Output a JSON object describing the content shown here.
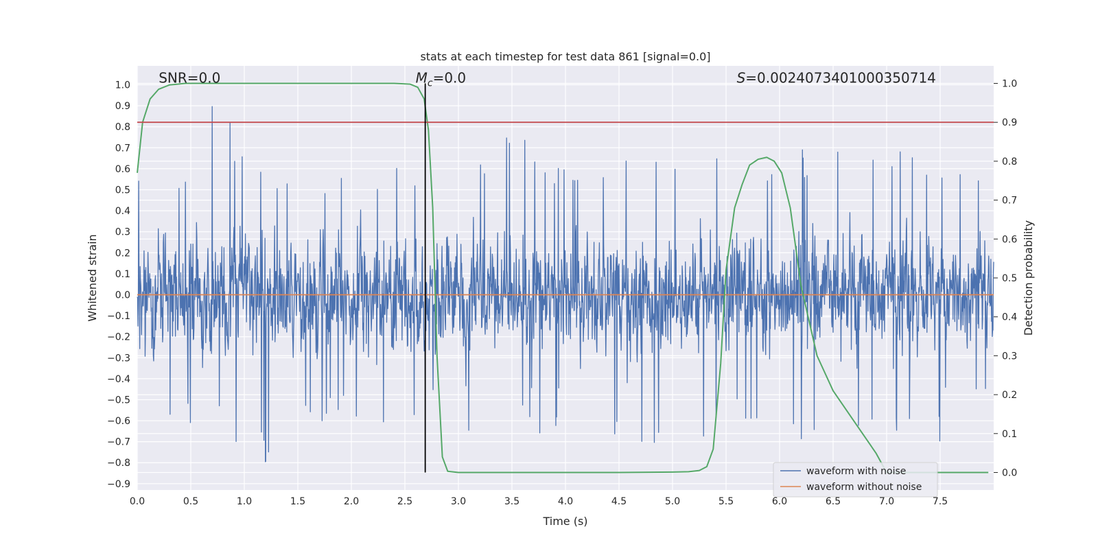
{
  "chart_data": {
    "type": "line",
    "title": "stats at each timestep for test data 861 [signal=0.0]",
    "xlabel": "Time (s)",
    "ylabel_left": "Whitened strain",
    "ylabel_right": "Detection probability",
    "xlim": [
      0.0,
      8.0
    ],
    "ylim_left": [
      -0.93,
      1.09
    ],
    "ylim_right": [
      -0.045,
      1.045
    ],
    "x_ticks": [
      "0.0",
      "0.5",
      "1.0",
      "1.5",
      "2.0",
      "2.5",
      "3.0",
      "3.5",
      "4.0",
      "4.5",
      "5.0",
      "5.5",
      "6.0",
      "6.5",
      "7.0",
      "7.5"
    ],
    "y_ticks_left": [
      "−0.9",
      "−0.8",
      "−0.7",
      "−0.6",
      "−0.5",
      "−0.4",
      "−0.3",
      "−0.2",
      "−0.1",
      "0.0",
      "0.1",
      "0.2",
      "0.3",
      "0.4",
      "0.5",
      "0.6",
      "0.7",
      "0.8",
      "0.9",
      "1.0"
    ],
    "y_ticks_right": [
      "0.0",
      "0.1",
      "0.2",
      "0.3",
      "0.4",
      "0.5",
      "0.6",
      "0.7",
      "0.8",
      "0.9",
      "1.0"
    ],
    "grid": true,
    "legend_position": "lower-right",
    "series": [
      {
        "name": "waveform with noise",
        "axis": "left",
        "color": "#4c72b0",
        "envelope": {
          "x": [
            0.0,
            0.25,
            0.5,
            0.73,
            1.0,
            1.3,
            1.5,
            2.0,
            2.45,
            2.7,
            2.9,
            3.2,
            3.35,
            3.5,
            3.8,
            4.2,
            4.6,
            5.0,
            5.5,
            5.6,
            6.0,
            6.5,
            7.0,
            7.5,
            8.0
          ],
          "upper": [
            0.55,
            0.68,
            0.56,
            1.0,
            0.69,
            0.55,
            0.58,
            0.56,
            0.61,
            0.65,
            0.58,
            0.62,
            0.81,
            0.88,
            0.6,
            0.68,
            0.65,
            0.69,
            0.8,
            0.66,
            0.68,
            0.71,
            0.69,
            0.69,
            0.51
          ],
          "lower": [
            -0.48,
            -0.68,
            -0.7,
            -0.61,
            -0.76,
            -0.84,
            -0.64,
            -0.58,
            -0.65,
            -0.56,
            -0.66,
            -0.84,
            -0.72,
            -0.62,
            -0.69,
            -0.64,
            -0.7,
            -0.74,
            -0.7,
            -0.6,
            -0.74,
            -0.76,
            -0.72,
            -0.7,
            -0.45
          ]
        },
        "noise_amplitude_typical": 0.45
      },
      {
        "name": "waveform without noise",
        "axis": "left",
        "color": "#dd8452",
        "x": [
          0.0,
          8.0
        ],
        "y": [
          0.0,
          0.0
        ]
      },
      {
        "name": "",
        "axis": "right",
        "color": "#55a868",
        "x": [
          0.0,
          0.05,
          0.12,
          0.2,
          0.3,
          0.45,
          0.7,
          1.5,
          2.0,
          2.4,
          2.55,
          2.62,
          2.68,
          2.72,
          2.76,
          2.8,
          2.85,
          2.9,
          3.0,
          3.5,
          4.0,
          4.5,
          5.0,
          5.15,
          5.25,
          5.32,
          5.38,
          5.45,
          5.5,
          5.58,
          5.65,
          5.72,
          5.8,
          5.88,
          5.95,
          6.02,
          6.1,
          6.2,
          6.35,
          6.5,
          6.7,
          6.9,
          7.0,
          7.5,
          7.95
        ],
        "y": [
          0.77,
          0.9,
          0.96,
          0.985,
          0.996,
          1.0,
          1.0,
          1.0,
          1.0,
          1.0,
          0.998,
          0.99,
          0.96,
          0.88,
          0.68,
          0.3,
          0.04,
          0.003,
          0.0,
          0.0,
          0.0,
          0.0,
          0.001,
          0.002,
          0.005,
          0.015,
          0.06,
          0.28,
          0.52,
          0.68,
          0.74,
          0.79,
          0.805,
          0.81,
          0.8,
          0.77,
          0.68,
          0.48,
          0.3,
          0.21,
          0.13,
          0.05,
          0.0,
          0.0,
          0.0
        ]
      }
    ],
    "hlines": [
      {
        "axis": "right",
        "y": 0.9,
        "color": "#c44e52"
      }
    ],
    "vlines": [
      {
        "x": 2.69,
        "ymin_right": 0.0,
        "ymax_right": 1.0,
        "color": "#000000"
      }
    ],
    "annotations": [
      {
        "text": "SNR=0.0",
        "x": 0.2,
        "y_right": 1.0
      },
      {
        "text_italic": "M",
        "subscript": "c",
        "text_rest": "=0.0",
        "x": 2.6,
        "y_right": 1.0
      },
      {
        "text_italic": "S",
        "text_rest": "=0.0024073401000350714",
        "x": 5.6,
        "y_right": 1.0
      }
    ]
  }
}
